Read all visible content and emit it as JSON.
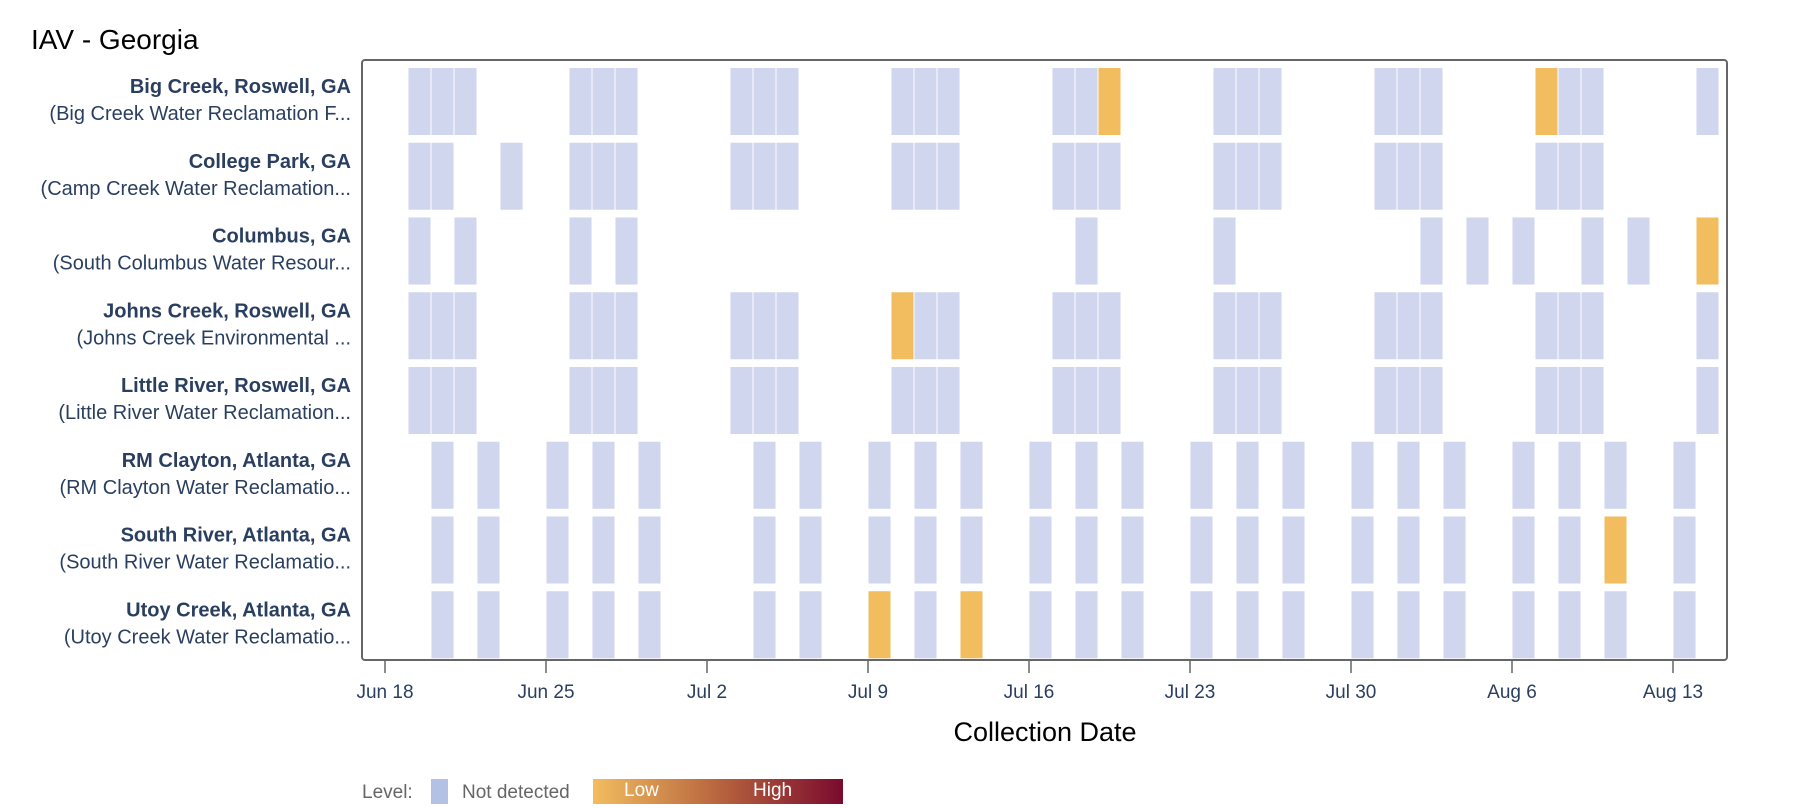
{
  "chart_data": {
    "type": "heatmap",
    "title": "IAV - Georgia",
    "xlabel": "Collection Date",
    "x_start_date": "Jun 18",
    "x_range_days": [
      0,
      58
    ],
    "x_ticks": [
      {
        "day": 0,
        "label": "Jun 18"
      },
      {
        "day": 7,
        "label": "Jun 25"
      },
      {
        "day": 14,
        "label": "Jul 2"
      },
      {
        "day": 21,
        "label": "Jul 9"
      },
      {
        "day": 28,
        "label": "Jul 16"
      },
      {
        "day": 35,
        "label": "Jul 23"
      },
      {
        "day": 42,
        "label": "Jul 30"
      },
      {
        "day": 49,
        "label": "Aug 6"
      },
      {
        "day": 56,
        "label": "Aug 13"
      }
    ],
    "rows": [
      {
        "name": "Big Creek, Roswell, GA",
        "facility": "(Big Creek Water Reclamation F...",
        "not_detected": [
          1,
          2,
          3,
          8,
          9,
          10,
          15,
          16,
          17,
          22,
          23,
          24,
          29,
          30,
          36,
          37,
          38,
          43,
          44,
          45,
          51,
          52,
          57
        ],
        "low": [
          31,
          50
        ]
      },
      {
        "name": "College Park, GA",
        "facility": "(Camp Creek Water Reclamation...",
        "not_detected": [
          1,
          2,
          5,
          8,
          9,
          10,
          15,
          16,
          17,
          22,
          23,
          24,
          29,
          30,
          31,
          36,
          37,
          38,
          43,
          44,
          45,
          50,
          51,
          52
        ],
        "low": []
      },
      {
        "name": "Columbus, GA",
        "facility": "(South Columbus Water Resour...",
        "not_detected": [
          1,
          3,
          8,
          10,
          30,
          36,
          45,
          47,
          49,
          52,
          54
        ],
        "low": [
          57
        ]
      },
      {
        "name": "Johns Creek, Roswell, GA",
        "facility": "(Johns Creek Environmental ...",
        "not_detected": [
          1,
          2,
          3,
          8,
          9,
          10,
          15,
          16,
          17,
          23,
          24,
          29,
          30,
          31,
          36,
          37,
          38,
          43,
          44,
          45,
          50,
          51,
          52,
          57
        ],
        "low": [
          22
        ]
      },
      {
        "name": "Little River, Roswell, GA",
        "facility": "(Little River Water Reclamation...",
        "not_detected": [
          1,
          2,
          3,
          8,
          9,
          10,
          15,
          16,
          17,
          22,
          23,
          24,
          29,
          30,
          31,
          36,
          37,
          38,
          43,
          44,
          45,
          50,
          51,
          52,
          57
        ],
        "low": []
      },
      {
        "name": "RM Clayton, Atlanta, GA",
        "facility": "(RM Clayton Water Reclamatio...",
        "not_detected": [
          2,
          4,
          7,
          9,
          11,
          16,
          18,
          21,
          23,
          25,
          28,
          30,
          32,
          35,
          37,
          39,
          42,
          44,
          46,
          49,
          51,
          53,
          56
        ],
        "low": []
      },
      {
        "name": "South River, Atlanta, GA",
        "facility": "(South River Water Reclamatio...",
        "not_detected": [
          2,
          4,
          7,
          9,
          11,
          16,
          18,
          21,
          23,
          25,
          28,
          30,
          32,
          35,
          37,
          39,
          42,
          44,
          46,
          49,
          51,
          56
        ],
        "low": [
          53
        ]
      },
      {
        "name": "Utoy Creek, Atlanta, GA",
        "facility": "(Utoy Creek Water Reclamatio...",
        "not_detected": [
          2,
          4,
          7,
          9,
          11,
          16,
          18,
          23,
          28,
          30,
          32,
          35,
          37,
          39,
          42,
          44,
          46,
          49,
          51,
          53,
          56
        ],
        "low": [
          21,
          25
        ]
      }
    ],
    "legend": {
      "label": "Level:",
      "not_detected": "Not detected",
      "low": "Low",
      "high": "High",
      "placement": "bottom-left"
    }
  },
  "colors": {
    "not_detected": "#cfd6ed",
    "not_detected_swatch": "#b3c1e4",
    "low": "#f2bd5e",
    "high": "#7a0a2e"
  }
}
